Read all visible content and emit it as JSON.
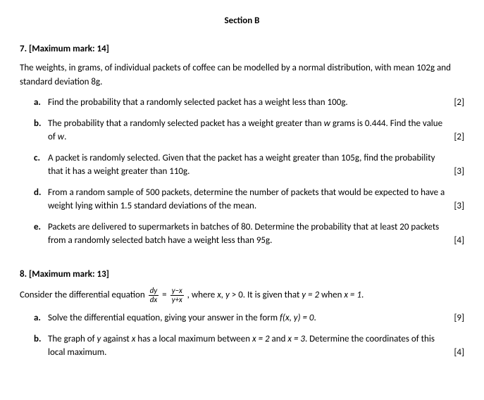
{
  "section_title": "Section B",
  "q7": {
    "header": "7. [Maximum mark: 14]",
    "intro": "The weights, in grams, of individual packets of coffee can be modelled by a normal distribution, with mean 102g and standard deviation 8g.",
    "parts": {
      "a": {
        "letter": "a.",
        "text": "Find the probability that a randomly selected packet has a weight less than 100g.",
        "marks": "[2]"
      },
      "b": {
        "letter": "b.",
        "text_pre": "The probability that a randomly selected packet has a weight greater than ",
        "text_mid": " grams is 0.444. Find the value of ",
        "var1": "w",
        "var2": "w",
        "text_post": ".",
        "marks": "[2]"
      },
      "c": {
        "letter": "c.",
        "text": "A packet is randomly selected. Given that the packet has a weight greater than 105g, find the probability that it has a weight greater than 110g.",
        "marks": "[3]"
      },
      "d": {
        "letter": "d.",
        "text": "From a random sample of 500 packets, determine the number of packets that would be expected to have a weight lying within 1.5 standard deviations of the mean.",
        "marks": "[3]"
      },
      "e": {
        "letter": "e.",
        "text": "Packets are delivered to supermarkets in batches of 80. Determine the probability that at least 20 packets from a randomly selected batch have a weight less than 95g.",
        "marks": "[4]"
      }
    }
  },
  "q8": {
    "header": "8.  [Maximum mark: 13]",
    "intro_pre": "Consider the differential equation ",
    "frac1_num": "dy",
    "frac1_den": "dx",
    "eq": " = ",
    "frac2_num": "y−x",
    "frac2_den": "y+x",
    "intro_mid": " , where ",
    "vars_xy": "x,  y",
    "intro_gt": " > 0.  It is given that ",
    "y_eq": "y = 2",
    "when": " when ",
    "x_eq": "x = 1",
    "intro_post": ".",
    "parts": {
      "a": {
        "letter": "a.",
        "text_pre": "Solve the differential equation, giving your answer in the form ",
        "fxy": "f(x, y) = 0",
        "text_post": ".",
        "marks": "[9]"
      },
      "b": {
        "letter": "b.",
        "text_pre": "The graph of ",
        "var_y": "y",
        "text_mid1": " against ",
        "var_x": "x",
        "text_mid2": " has a local maximum between ",
        "x2": "x = 2",
        "text_and": " and ",
        "x3": "x = 3",
        "text_post": ". Determine the coordinates of this local maximum.",
        "marks": "[4]"
      }
    }
  }
}
